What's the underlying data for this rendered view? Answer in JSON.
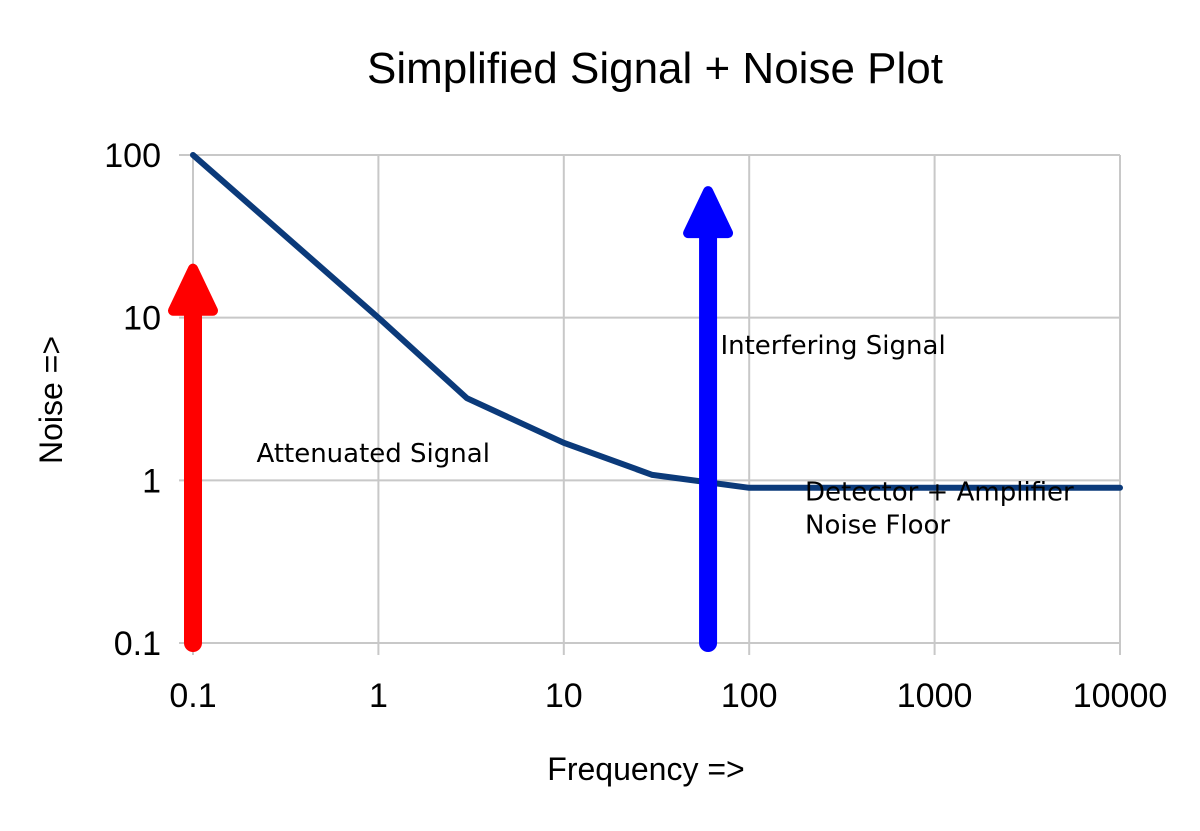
{
  "chart_data": {
    "type": "line",
    "title": "Simplified Signal + Noise Plot",
    "xlabel": "Frequency =>",
    "ylabel": "Noise =>",
    "x_scale": "log",
    "y_scale": "log",
    "xlim": [
      0.1,
      10000
    ],
    "ylim": [
      0.1,
      100
    ],
    "x_ticks": [
      0.1,
      1,
      10,
      100,
      1000,
      10000
    ],
    "x_tick_labels": [
      "0.1",
      "1",
      "10",
      "100",
      "1000",
      "10000"
    ],
    "y_ticks": [
      0.1,
      1,
      10,
      100
    ],
    "y_tick_labels": [
      "0.1",
      "1",
      "10",
      "100"
    ],
    "grid": true,
    "series": [
      {
        "x": [
          0.1,
          1,
          3,
          10,
          30,
          100,
          10000
        ],
        "y": [
          100,
          10,
          3.2,
          1.7,
          1.08,
          0.9,
          0.9
        ],
        "color": "#0b3a7a"
      }
    ],
    "arrows": [
      {
        "x": 0.1,
        "y_from": 0.1,
        "y_to": 20,
        "color": "#ff0000"
      },
      {
        "x": 60,
        "y_from": 0.1,
        "y_to": 60,
        "color": "#0000ff"
      }
    ],
    "annotations": [
      {
        "lines": [
          "Attenuated Signal"
        ],
        "x": 0.22,
        "y": 1.3
      },
      {
        "lines": [
          "Interfering Signal"
        ],
        "x": 70,
        "y": 6
      },
      {
        "lines": [
          "Detector + Amplifier",
          "Noise Floor"
        ],
        "x": 200,
        "y": 0.75
      }
    ]
  }
}
